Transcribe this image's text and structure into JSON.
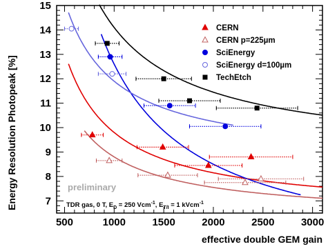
{
  "chart_data": {
    "type": "scatter",
    "xlabel": "effective double GEM gain",
    "ylabel": "Energy Resolution Photopeak [%]",
    "xlim": [
      420,
      3100
    ],
    "ylim": [
      6.5,
      15
    ],
    "x_ticks": [
      500,
      1000,
      1500,
      2000,
      2500,
      3000
    ],
    "y_ticks": [
      7,
      8,
      9,
      10,
      11,
      12,
      13,
      14,
      15
    ],
    "x_tick_labels": [
      "500",
      "1000",
      "1500",
      "2000",
      "2500",
      "3000"
    ],
    "y_tick_labels": [
      "7",
      "8",
      "9",
      "10",
      "11",
      "12",
      "13",
      "14",
      "15"
    ],
    "grid": false,
    "legend_position": "top-right",
    "annotations": {
      "preliminary": "preliminary",
      "conditions_prefix": "TDR gas, 0 T,  E",
      "conditions_sub1": "D",
      "conditions_mid": " = 250 Vcm",
      "conditions_sup1": "-1",
      "conditions_mid2": ", E",
      "conditions_sub2": "T/I",
      "conditions_mid3": " = 1 kVcm",
      "conditions_sup2": "-1"
    },
    "series": [
      {
        "name": "CERN",
        "color": "#e00000",
        "marker": "triangle-filled",
        "points": [
          {
            "x": 780,
            "y": 9.7,
            "xerr": 110
          },
          {
            "x": 1490,
            "y": 9.2,
            "xerr": 260
          },
          {
            "x": 1950,
            "y": 8.45,
            "xerr": 340
          },
          {
            "x": 2380,
            "y": 8.8,
            "xerr": 420
          }
        ],
        "fit": {
          "a": 6.5,
          "b": 3300,
          "xmin": 540,
          "xmax": 3100
        }
      },
      {
        "name": "CERN p=225µm",
        "color": "#c06060",
        "marker": "triangle-open",
        "points": [
          {
            "x": 950,
            "y": 8.65,
            "xerr": 130
          },
          {
            "x": 1540,
            "y": 8.05,
            "xerr": 300
          },
          {
            "x": 2320,
            "y": 7.75,
            "xerr": 410
          },
          {
            "x": 2480,
            "y": 7.9,
            "xerr": 430
          }
        ],
        "fit": {
          "a": 6.3,
          "b": 2500,
          "xmin": 700,
          "xmax": 3100
        }
      },
      {
        "name": "SciEnergy",
        "color": "#0000dd",
        "marker": "circle-filled",
        "points": [
          {
            "x": 960,
            "y": 12.9,
            "xerr": 120
          },
          {
            "x": 1560,
            "y": 10.9,
            "xerr": 260
          },
          {
            "x": 2120,
            "y": 10.05,
            "xerr": 360
          }
        ],
        "fit": {
          "a": 4.4,
          "b": 8200,
          "xmin": 870,
          "xmax": 2880
        }
      },
      {
        "name": "SciEnergy d=100µm",
        "color": "#6666dd",
        "marker": "circle-open",
        "points": [
          {
            "x": 570,
            "y": 14.05,
            "xerr": 70
          },
          {
            "x": 980,
            "y": 12.2,
            "xerr": 140
          }
        ],
        "fit": {
          "a": 8.6,
          "b": 3300,
          "xmin": 540,
          "xmax": 2200
        }
      },
      {
        "name": "TechEtch",
        "color": "#000000",
        "marker": "square-filled",
        "points": [
          {
            "x": 930,
            "y": 13.45,
            "xerr": 120
          },
          {
            "x": 1500,
            "y": 12.0,
            "xerr": 280
          },
          {
            "x": 1760,
            "y": 11.1,
            "xerr": 310
          },
          {
            "x": 2440,
            "y": 10.8,
            "xerr": 410
          }
        ],
        "fit": {
          "a": 8.8,
          "b": 5300,
          "xmin": 850,
          "xmax": 3100
        }
      }
    ]
  }
}
